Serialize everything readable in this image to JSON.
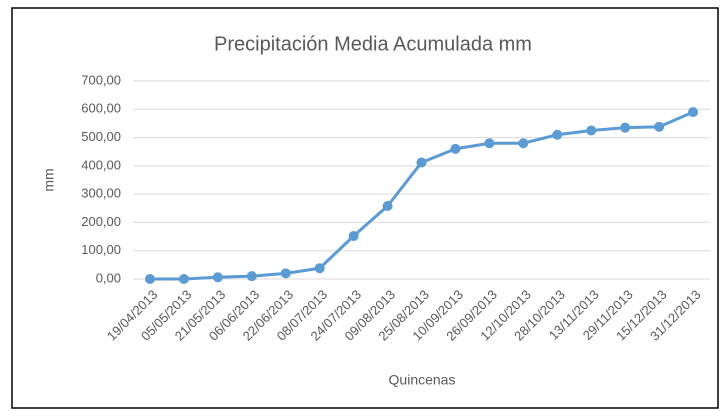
{
  "chart_data": {
    "type": "line",
    "title": "Precipitación Media Acumulada mm",
    "y_label": "mm",
    "x_label": "Quincenas",
    "categories": [
      "19/04/2013",
      "05/05/2013",
      "21/05/2013",
      "06/06/2013",
      "22/06/2013",
      "08/07/2013",
      "24/07/2013",
      "09/08/2013",
      "25/08/2013",
      "10/09/2013",
      "26/09/2013",
      "12/10/2013",
      "28/10/2013",
      "13/11/2013",
      "29/11/2013",
      "15/12/2013",
      "31/12/2013"
    ],
    "series": [
      {
        "name": "Precipitación Media Acumulada mm",
        "color": "#5b9bd5",
        "values": [
          0,
          0,
          6,
          10,
          20,
          38,
          152,
          258,
          412,
          460,
          480,
          480,
          510,
          525,
          535,
          538,
          590
        ]
      }
    ],
    "ylim": [
      0,
      700
    ],
    "yticks": [
      {
        "value": 0,
        "label": "0,00"
      },
      {
        "value": 100,
        "label": "100,00"
      },
      {
        "value": 200,
        "label": "200,00"
      },
      {
        "value": 300,
        "label": "300,00"
      },
      {
        "value": 400,
        "label": "400,00"
      },
      {
        "value": 500,
        "label": "500,00"
      },
      {
        "value": 600,
        "label": "600,00"
      },
      {
        "value": 700,
        "label": "700,00"
      }
    ],
    "grid": true
  }
}
